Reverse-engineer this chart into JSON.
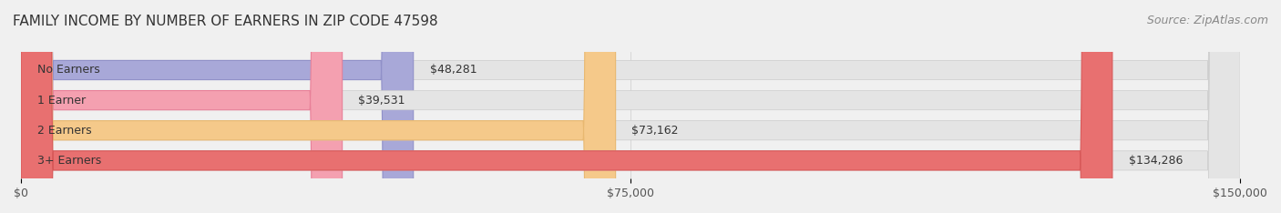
{
  "title": "FAMILY INCOME BY NUMBER OF EARNERS IN ZIP CODE 47598",
  "source": "Source: ZipAtlas.com",
  "categories": [
    "No Earners",
    "1 Earner",
    "2 Earners",
    "3+ Earners"
  ],
  "values": [
    48281,
    39531,
    73162,
    134286
  ],
  "bar_colors": [
    "#a8a8d8",
    "#f4a0b0",
    "#f5c98a",
    "#e87070"
  ],
  "bar_edge_colors": [
    "#9090c8",
    "#e88098",
    "#e8b870",
    "#d85858"
  ],
  "value_labels": [
    "$48,281",
    "$39,531",
    "$73,162",
    "$134,286"
  ],
  "xlim": [
    0,
    150000
  ],
  "xtick_values": [
    0,
    75000,
    150000
  ],
  "xtick_labels": [
    "$0",
    "$75,000",
    "$150,000"
  ],
  "background_color": "#f0f0f0",
  "bar_bg_color": "#e8e8e8",
  "title_fontsize": 11,
  "source_fontsize": 9,
  "label_fontsize": 9,
  "value_fontsize": 9,
  "tick_fontsize": 9,
  "bar_height": 0.62,
  "fig_width": 14.06,
  "fig_height": 2.34
}
